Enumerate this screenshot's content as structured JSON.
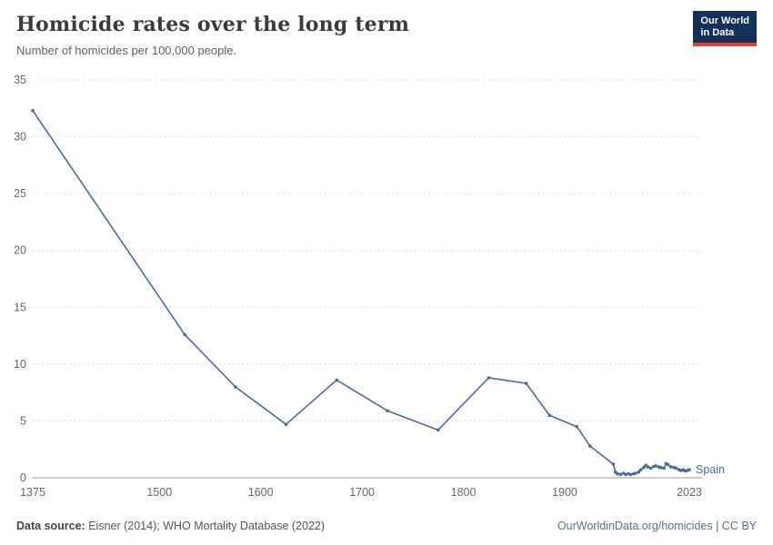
{
  "header": {
    "title": "Homicide rates over the long term",
    "subtitle": "Number of homicides per 100,000 people.",
    "logo": {
      "line1": "Our World",
      "line2": "in Data"
    }
  },
  "footer": {
    "source_label": "Data source:",
    "source_text": " Eisner (2014); WHO Mortality Database (2022)",
    "right_text": "OurWorldinData.org/homicides | CC BY"
  },
  "chart_data": {
    "type": "line",
    "title": "Homicide rates over the long term",
    "subtitle": "Number of homicides per 100,000 people.",
    "xlabel": "",
    "ylabel": "",
    "xlim": [
      1375,
      2023
    ],
    "ylim": [
      0,
      35
    ],
    "yticks": [
      0,
      5,
      10,
      15,
      20,
      25,
      30,
      35
    ],
    "xticks": [
      1375,
      1500,
      1600,
      1700,
      1800,
      1900,
      2023
    ],
    "grid": true,
    "legend_position": "end-of-line",
    "colors": {
      "line": "#4C6A9C",
      "grid": "#dedede",
      "axis": "#999999",
      "tick_text": "#666666"
    },
    "series": [
      {
        "name": "Spain",
        "color": "#4C6A9C",
        "points": [
          [
            1375,
            32.3
          ],
          [
            1525,
            12.6
          ],
          [
            1575,
            8.0
          ],
          [
            1625,
            4.7
          ],
          [
            1675,
            8.6
          ],
          [
            1725,
            5.9
          ],
          [
            1775,
            4.2
          ],
          [
            1825,
            8.8
          ],
          [
            1862,
            8.3
          ],
          [
            1885,
            5.5
          ],
          [
            1912,
            4.5
          ],
          [
            1925,
            2.8
          ],
          [
            1948,
            1.2
          ],
          [
            1950,
            0.5
          ],
          [
            1952,
            0.35
          ],
          [
            1955,
            0.3
          ],
          [
            1958,
            0.4
          ],
          [
            1960,
            0.3
          ],
          [
            1963,
            0.35
          ],
          [
            1965,
            0.28
          ],
          [
            1968,
            0.35
          ],
          [
            1970,
            0.4
          ],
          [
            1973,
            0.5
          ],
          [
            1975,
            0.7
          ],
          [
            1978,
            0.9
          ],
          [
            1980,
            1.1
          ],
          [
            1982,
            0.95
          ],
          [
            1985,
            0.85
          ],
          [
            1988,
            1.0
          ],
          [
            1990,
            1.05
          ],
          [
            1993,
            0.95
          ],
          [
            1995,
            0.9
          ],
          [
            1998,
            0.85
          ],
          [
            2000,
            1.25
          ],
          [
            2002,
            1.15
          ],
          [
            2005,
            0.95
          ],
          [
            2008,
            0.9
          ],
          [
            2010,
            0.85
          ],
          [
            2013,
            0.7
          ],
          [
            2015,
            0.65
          ],
          [
            2017,
            0.7
          ],
          [
            2019,
            0.6
          ],
          [
            2021,
            0.65
          ],
          [
            2023,
            0.7
          ]
        ]
      }
    ]
  }
}
